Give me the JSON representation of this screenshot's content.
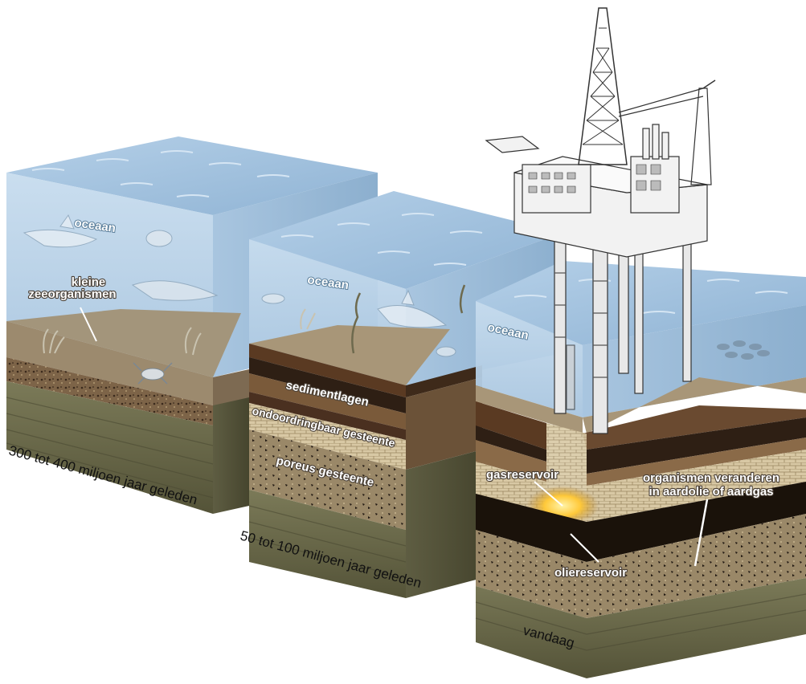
{
  "blocks": [
    {
      "era": "300 tot 400 miljoen jaar geleden",
      "ocean": "oceaan",
      "organisms_line1": "kleine",
      "organisms_line2": "zeeorganismen"
    },
    {
      "era": "50 tot 100 miljoen jaar geleden",
      "ocean": "oceaan",
      "sediment": "sedimentlagen",
      "impermeable": "ondoordringbaar gesteente",
      "porous": "poreus gesteente"
    },
    {
      "era": "vandaag",
      "ocean": "oceaan",
      "gas": "gasreservoir",
      "oil": "oliereservoir",
      "transform_line1": "organismen veranderen",
      "transform_line2": "in aardolie of aardgas"
    }
  ],
  "colors": {
    "water_top": "#a9c7e3",
    "water_side": "#b8d4ea",
    "sea_floor": "#9c8a6e",
    "sediment_dark": "#4a3020",
    "bedrock": "#6b6a4e",
    "gas_glow": "#ffd24a",
    "oil": "#1a120a"
  },
  "icons": [
    "oil-platform-icon",
    "shark-icon",
    "fish-icon",
    "crab-icon",
    "seaweed-icon"
  ]
}
